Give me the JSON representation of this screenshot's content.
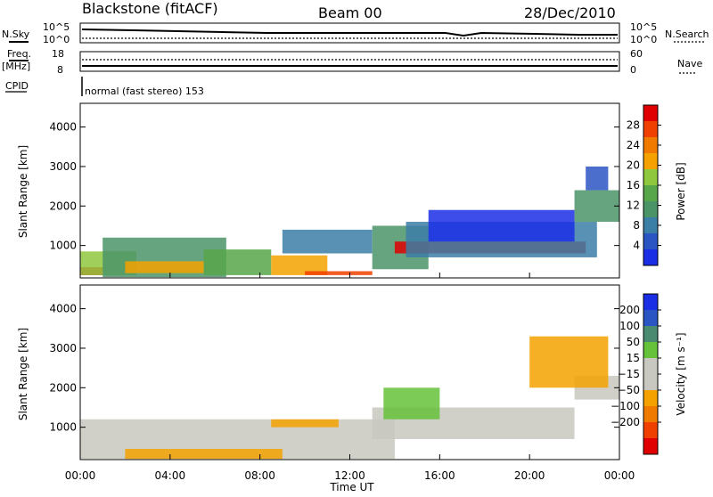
{
  "header": {
    "station": "Blackstone (fitACF)",
    "beam": "Beam 00",
    "date": "28/Dec/2010"
  },
  "strips": {
    "nsky_label": "N.Sky",
    "nsky_ticks": [
      "10^5",
      "10^0"
    ],
    "freq_label_1": "Freq.",
    "freq_label_2": "[MHz]",
    "freq_ticks": [
      "18",
      "8"
    ],
    "nsearch_label": "N.Search",
    "nsearch_ticks": [
      "10^5",
      "10^0"
    ],
    "nave_label": "Nave",
    "nave_ticks": [
      "60",
      "0"
    ],
    "cpid_label": "CPID",
    "cpid_text": "normal (fast stereo) 153"
  },
  "colors": {
    "power": [
      "#1a2ee6",
      "#2c55c4",
      "#3b7ea6",
      "#4a9467",
      "#58a64a",
      "#8fc83e",
      "#f5a200",
      "#f07a00",
      "#f04000",
      "#e00000"
    ],
    "velocity": [
      "#e00000",
      "#f04000",
      "#f07a00",
      "#f5a200",
      "#c8c8c0",
      "#c8c8c0",
      "#66c23a",
      "#4a8a70",
      "#2c55c4",
      "#1a2ee6"
    ]
  },
  "chart_data": [
    {
      "type": "heatmap",
      "name": "power",
      "xlabel": "",
      "ylabel": "Slant Range [km]",
      "xlim": [
        "00:00",
        "24:00"
      ],
      "ylim": [
        180,
        4600
      ],
      "yticks": [
        "1000",
        "2000",
        "3000",
        "4000"
      ],
      "colorbar": {
        "label": "Power [dB]",
        "ticks": [
          "4",
          "8",
          "12",
          "16",
          "20",
          "24",
          "28"
        ],
        "range": [
          0,
          32
        ]
      },
      "blobs": [
        {
          "t0": 0.0,
          "t1": 1.0,
          "r0": 250,
          "r1": 450,
          "lvl": 9
        },
        {
          "t0": 0.0,
          "t1": 2.5,
          "r0": 250,
          "r1": 850,
          "lvl": 5
        },
        {
          "t0": 1.0,
          "t1": 6.5,
          "r0": 200,
          "r1": 1200,
          "lvl": 3
        },
        {
          "t0": 2.0,
          "t1": 5.5,
          "r0": 300,
          "r1": 600,
          "lvl": 6
        },
        {
          "t0": 5.5,
          "t1": 8.5,
          "r0": 250,
          "r1": 900,
          "lvl": 4
        },
        {
          "t0": 8.5,
          "t1": 11.0,
          "r0": 250,
          "r1": 750,
          "lvl": 6
        },
        {
          "t0": 10.0,
          "t1": 13.0,
          "r0": 250,
          "r1": 350,
          "lvl": 8
        },
        {
          "t0": 9.0,
          "t1": 13.0,
          "r0": 800,
          "r1": 1400,
          "lvl": 2
        },
        {
          "t0": 13.0,
          "t1": 15.5,
          "r0": 400,
          "r1": 1500,
          "lvl": 3
        },
        {
          "t0": 14.0,
          "t1": 22.5,
          "r0": 800,
          "r1": 1100,
          "lvl": 9
        },
        {
          "t0": 14.5,
          "t1": 23.0,
          "r0": 700,
          "r1": 1600,
          "lvl": 2
        },
        {
          "t0": 15.5,
          "t1": 22.0,
          "r0": 1100,
          "r1": 1900,
          "lvl": 0
        },
        {
          "t0": 22.0,
          "t1": 24.0,
          "r0": 1600,
          "r1": 2400,
          "lvl": 3
        },
        {
          "t0": 22.5,
          "t1": 23.5,
          "r0": 2400,
          "r1": 3000,
          "lvl": 1
        }
      ]
    },
    {
      "type": "heatmap",
      "name": "velocity",
      "xlabel": "Time UT",
      "ylabel": "Slant Range [km]",
      "xlim": [
        "00:00",
        "24:00"
      ],
      "xticks": [
        "00:00",
        "04:00",
        "08:00",
        "12:00",
        "16:00",
        "20:00",
        "00:00"
      ],
      "ylim": [
        180,
        4600
      ],
      "yticks": [
        "1000",
        "2000",
        "3000",
        "4000"
      ],
      "colorbar": {
        "label": "Velocity [m s⁻¹]",
        "ticks": [
          "200",
          "100",
          "50",
          "15",
          "−15",
          "−50",
          "−100",
          "−200"
        ]
      },
      "blobs": [
        {
          "t0": 0.0,
          "t1": 14.0,
          "r0": 200,
          "r1": 1200,
          "lvl": 4
        },
        {
          "t0": 2.0,
          "t1": 9.0,
          "r0": 200,
          "r1": 450,
          "lvl": 3
        },
        {
          "t0": 8.5,
          "t1": 11.5,
          "r0": 1000,
          "r1": 1200,
          "lvl": 3
        },
        {
          "t0": 13.0,
          "t1": 22.0,
          "r0": 700,
          "r1": 1500,
          "lvl": 5
        },
        {
          "t0": 22.0,
          "t1": 24.0,
          "r0": 1700,
          "r1": 2300,
          "lvl": 5
        },
        {
          "t0": 13.5,
          "t1": 16.0,
          "r0": 1200,
          "r1": 2000,
          "lvl": 6
        },
        {
          "t0": 20.0,
          "t1": 23.5,
          "r0": 2000,
          "r1": 3300,
          "lvl": 3
        }
      ]
    }
  ]
}
